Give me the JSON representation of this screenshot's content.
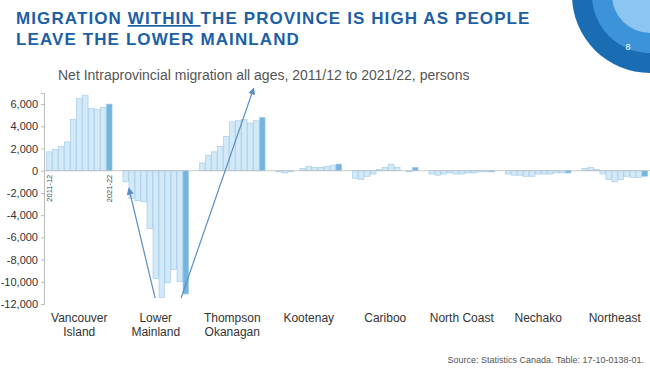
{
  "chart_data": {
    "type": "bar",
    "title": [
      "MIGRATION WITHIN THE PROVINCE IS HIGH AS PEOPLE",
      "LEAVE THE LOWER MAINLAND"
    ],
    "subtitle": "Net Intraprovincial migration all ages, 2011/12 to 2021/22, persons",
    "source": "Source: Statistics Canada. Table: 17-10-0138-01.",
    "slide_number": "8",
    "categories": [
      "2011-12",
      null,
      null,
      null,
      null,
      null,
      null,
      null,
      null,
      null,
      "2021-22"
    ],
    "series": [
      {
        "name": "Vancouver\nIsland",
        "values": [
          1700,
          1900,
          2200,
          2600,
          4600,
          6500,
          6800,
          5600,
          5500,
          5700,
          6000
        ],
        "colors": [
          "#d3e9f7",
          "#d3e9f7",
          "#d3e9f7",
          "#d3e9f7",
          "#d3e9f7",
          "#d3e9f7",
          "#d3e9f7",
          "#d3e9f7",
          "#d3e9f7",
          "#d3e9f7",
          "#74b4df"
        ]
      },
      {
        "name": "Lower\nMainland",
        "values": [
          -1000,
          -2500,
          -2700,
          -2800,
          -5200,
          -9700,
          -11400,
          -10100,
          -8900,
          -10000,
          -11100
        ],
        "colors": [
          "#d3e9f7",
          "#d3e9f7",
          "#d3e9f7",
          "#d3e9f7",
          "#d3e9f7",
          "#d3e9f7",
          "#d3e9f7",
          "#d3e9f7",
          "#d3e9f7",
          "#d3e9f7",
          "#74b4df"
        ]
      },
      {
        "name": "Thompson\nOkanagan",
        "values": [
          700,
          1400,
          1700,
          2200,
          3100,
          4400,
          4500,
          4600,
          4300,
          4500,
          4800
        ],
        "colors": [
          "#d3e9f7",
          "#d3e9f7",
          "#d3e9f7",
          "#d3e9f7",
          "#d3e9f7",
          "#d3e9f7",
          "#d3e9f7",
          "#d3e9f7",
          "#d3e9f7",
          "#d3e9f7",
          "#74b4df"
        ]
      },
      {
        "name": "Kootenay",
        "values": [
          -100,
          -200,
          -100,
          0,
          200,
          400,
          300,
          300,
          400,
          500,
          600
        ],
        "colors": [
          "#d3e9f7",
          "#d3e9f7",
          "#d3e9f7",
          "#d3e9f7",
          "#d3e9f7",
          "#d3e9f7",
          "#d3e9f7",
          "#d3e9f7",
          "#d3e9f7",
          "#d3e9f7",
          "#74b4df"
        ]
      },
      {
        "name": "Cariboo",
        "values": [
          -700,
          -800,
          -500,
          -300,
          100,
          300,
          600,
          300,
          0,
          -100,
          300
        ],
        "colors": [
          "#d3e9f7",
          "#d3e9f7",
          "#d3e9f7",
          "#d3e9f7",
          "#d3e9f7",
          "#d3e9f7",
          "#d3e9f7",
          "#d3e9f7",
          "#d3e9f7",
          "#d3e9f7",
          "#74b4df"
        ]
      },
      {
        "name": "North Coast",
        "values": [
          -300,
          -400,
          -300,
          -200,
          -300,
          -300,
          -200,
          -200,
          -100,
          -100,
          -100
        ],
        "colors": [
          "#d3e9f7",
          "#d3e9f7",
          "#d3e9f7",
          "#d3e9f7",
          "#d3e9f7",
          "#d3e9f7",
          "#d3e9f7",
          "#d3e9f7",
          "#d3e9f7",
          "#d3e9f7",
          "#74b4df"
        ]
      },
      {
        "name": "Nechako",
        "values": [
          -300,
          -400,
          -400,
          -500,
          -500,
          -300,
          -300,
          -300,
          -200,
          -200,
          -200
        ],
        "colors": [
          "#d3e9f7",
          "#d3e9f7",
          "#d3e9f7",
          "#d3e9f7",
          "#d3e9f7",
          "#d3e9f7",
          "#d3e9f7",
          "#d3e9f7",
          "#d3e9f7",
          "#d3e9f7",
          "#74b4df"
        ]
      },
      {
        "name": "Northeast",
        "values": [
          200,
          300,
          100,
          -300,
          -800,
          -1000,
          -800,
          -500,
          -600,
          -600,
          -500
        ],
        "colors": [
          "#d3e9f7",
          "#d3e9f7",
          "#d3e9f7",
          "#d3e9f7",
          "#d3e9f7",
          "#d3e9f7",
          "#d3e9f7",
          "#d3e9f7",
          "#d3e9f7",
          "#d3e9f7",
          "#74b4df"
        ]
      }
    ],
    "ylim": [
      -12000,
      7000
    ],
    "yticks": [
      {
        "value": -12000,
        "label": "-12,000"
      },
      {
        "value": -10000,
        "label": "-10,000"
      },
      {
        "value": -8000,
        "label": "-8,000"
      },
      {
        "value": -6000,
        "label": "-6,000"
      },
      {
        "value": -4000,
        "label": "-4,000"
      },
      {
        "value": -2000,
        "label": "-2,000"
      },
      0,
      {
        "value": 2000,
        "label": "2,000"
      },
      {
        "value": 4000,
        "label": "4,000"
      },
      {
        "value": 6000,
        "label": "6,000"
      }
    ],
    "grid": false
  }
}
